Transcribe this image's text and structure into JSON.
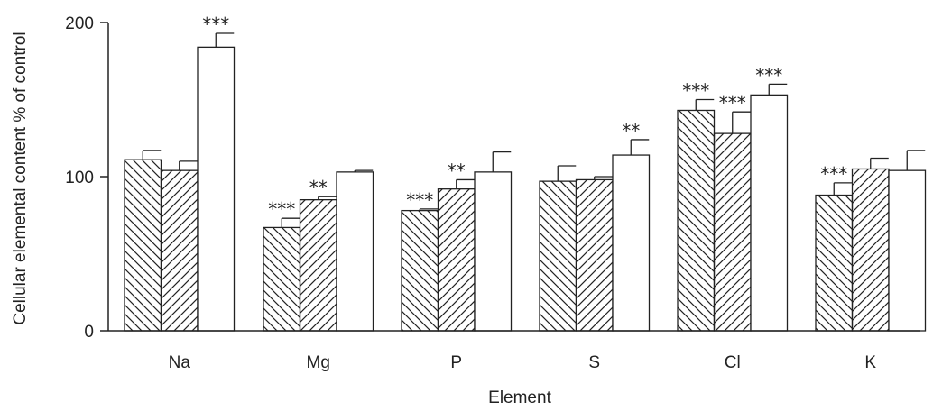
{
  "chart_data": {
    "type": "bar",
    "title": "",
    "xlabel": "Element",
    "ylabel": "Cellular elemental content % of control",
    "ylim": [
      0,
      200
    ],
    "yticks": [
      0,
      100,
      200
    ],
    "categories": [
      "Na",
      "Mg",
      "P",
      "S",
      "Cl",
      "K"
    ],
    "series": [
      {
        "pattern": "hatch-backslash",
        "values": [
          111,
          67,
          78,
          97,
          143,
          88
        ],
        "errors": [
          6,
          6,
          1,
          10,
          7,
          8
        ],
        "significance": [
          "",
          "***",
          "***",
          "",
          "***",
          "***"
        ]
      },
      {
        "pattern": "hatch-slash",
        "values": [
          104,
          85,
          92,
          98,
          128,
          105
        ],
        "errors": [
          6,
          2,
          6,
          2,
          14,
          7
        ],
        "significance": [
          "",
          "**",
          "**",
          "",
          "***",
          ""
        ]
      },
      {
        "pattern": "open",
        "values": [
          184,
          103,
          103,
          114,
          153,
          104
        ],
        "errors": [
          9,
          1,
          13,
          10,
          7,
          13
        ],
        "significance": [
          "***",
          "",
          "",
          "**",
          "***",
          ""
        ]
      }
    ],
    "grid": false,
    "legend": "none",
    "colors": {
      "stroke": "#222222",
      "fill": "#ffffff"
    }
  }
}
